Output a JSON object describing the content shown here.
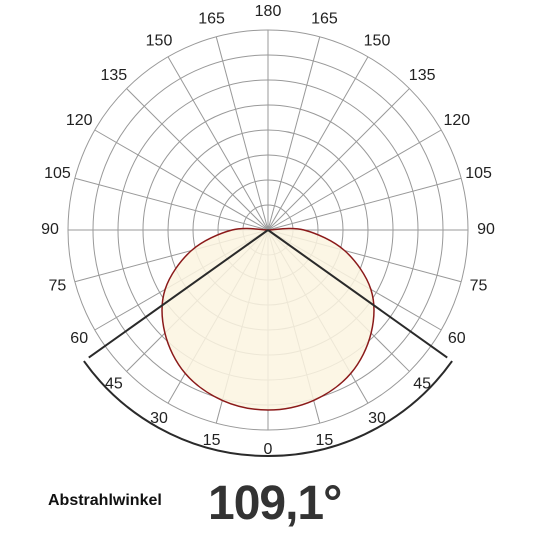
{
  "caption_label": "Abstrahlwinkel",
  "beam_angle_text": "109,1°",
  "chart_data": {
    "type": "polar",
    "angle_labels_left": [
      "180",
      "165",
      "150",
      "135",
      "120",
      "105",
      "90",
      "75",
      "60",
      "45",
      "30",
      "15",
      "0"
    ],
    "angle_labels_right": [
      "165",
      "150",
      "135",
      "120",
      "105",
      "90",
      "75",
      "60",
      "45",
      "30",
      "15"
    ],
    "angles_deg": [
      0,
      15,
      30,
      45,
      60,
      75,
      90,
      105,
      120,
      135,
      150,
      165,
      180
    ],
    "rings": 8,
    "grid": true,
    "beam_angle_deg": 109.1,
    "curve": {
      "shape": "ellipse-from-origin",
      "relative_radius": [
        1.0,
        0.98,
        0.92,
        0.81,
        0.66,
        0.44,
        0.2,
        0,
        0,
        0,
        0,
        0,
        0
      ],
      "fill": "#fbf5e0",
      "stroke": "#8b1a1a"
    },
    "colors": {
      "grid": "#999999",
      "beam_lines": "#2a2a2a"
    }
  }
}
